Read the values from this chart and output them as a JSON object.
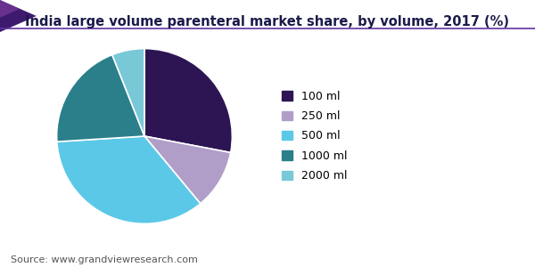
{
  "title": "India large volume parenteral market share, by volume, 2017 (%)",
  "labels": [
    "100 ml",
    "250 ml",
    "500 ml",
    "1000 ml",
    "2000 ml"
  ],
  "values": [
    28,
    11,
    35,
    20,
    6
  ],
  "colors": [
    "#2d1554",
    "#b09ec9",
    "#5bc8e8",
    "#2a7f8a",
    "#78c8d8"
  ],
  "source_text": "Source: www.grandviewresearch.com",
  "title_fontsize": 10.5,
  "legend_fontsize": 9,
  "source_fontsize": 8,
  "background_color": "#ffffff",
  "startangle": 90,
  "title_color": "#1a1a4a",
  "source_color": "#555555",
  "top_bar_left_color": "#4a2070",
  "top_bar_right_color": "#7030a0",
  "line_color": "#6030a0"
}
